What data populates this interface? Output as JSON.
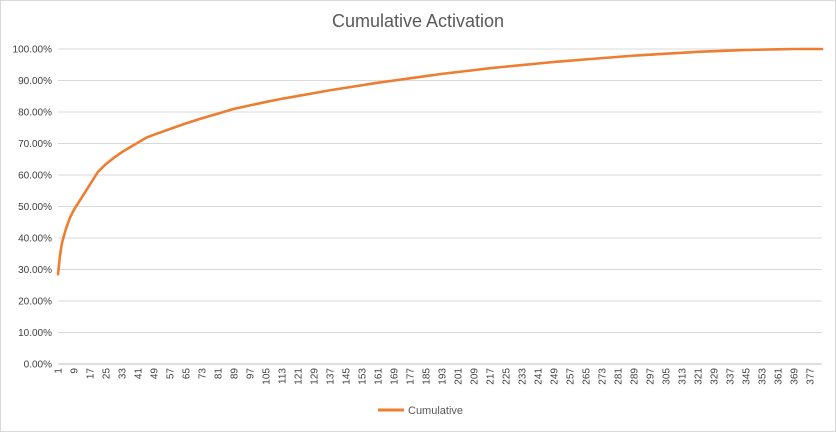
{
  "chart_data": {
    "type": "line",
    "title": "Cumulative Activation",
    "xlabel": "",
    "ylabel": "",
    "x_range": [
      1,
      383
    ],
    "x_tick_labels": [
      "1",
      "9",
      "17",
      "25",
      "33",
      "41",
      "49",
      "57",
      "65",
      "73",
      "81",
      "89",
      "97",
      "105",
      "113",
      "121",
      "129",
      "137",
      "145",
      "153",
      "161",
      "169",
      "177",
      "185",
      "193",
      "201",
      "209",
      "217",
      "225",
      "233",
      "241",
      "249",
      "257",
      "265",
      "273",
      "281",
      "289",
      "297",
      "305",
      "313",
      "321",
      "329",
      "337",
      "345",
      "353",
      "361",
      "369",
      "377"
    ],
    "ylim": [
      0,
      100
    ],
    "y_tick_labels": [
      "0.00%",
      "10.00%",
      "20.00%",
      "30.00%",
      "40.00%",
      "50.00%",
      "60.00%",
      "70.00%",
      "80.00%",
      "90.00%",
      "100.00%"
    ],
    "y_ticks": [
      0,
      10,
      20,
      30,
      40,
      50,
      60,
      70,
      80,
      90,
      100
    ],
    "grid": "horizontal",
    "legend_position": "bottom",
    "series": [
      {
        "name": "Cumulative",
        "color": "#ED7D31",
        "x": [
          1,
          2,
          3,
          5,
          7,
          9,
          13,
          17,
          21,
          25,
          29,
          33,
          37,
          41,
          45,
          49,
          57,
          65,
          73,
          81,
          89,
          97,
          105,
          113,
          121,
          129,
          137,
          145,
          153,
          161,
          169,
          177,
          185,
          193,
          201,
          209,
          217,
          225,
          233,
          241,
          249,
          257,
          265,
          273,
          281,
          289,
          297,
          305,
          313,
          321,
          329,
          337,
          345,
          353,
          361,
          369,
          377,
          383
        ],
        "y": [
          28.5,
          34.5,
          38.5,
          43.0,
          46.5,
          49.0,
          53.0,
          57.0,
          61.0,
          63.5,
          65.5,
          67.3,
          68.8,
          70.3,
          71.8,
          72.8,
          74.6,
          76.4,
          78.0,
          79.5,
          81.0,
          82.1,
          83.2,
          84.2,
          85.1,
          86.0,
          86.9,
          87.7,
          88.5,
          89.3,
          90.0,
          90.7,
          91.4,
          92.1,
          92.7,
          93.3,
          93.9,
          94.4,
          94.9,
          95.4,
          95.9,
          96.3,
          96.7,
          97.1,
          97.5,
          97.9,
          98.2,
          98.5,
          98.8,
          99.1,
          99.3,
          99.5,
          99.7,
          99.8,
          99.9,
          100.0,
          100.0,
          100.0
        ]
      }
    ]
  }
}
